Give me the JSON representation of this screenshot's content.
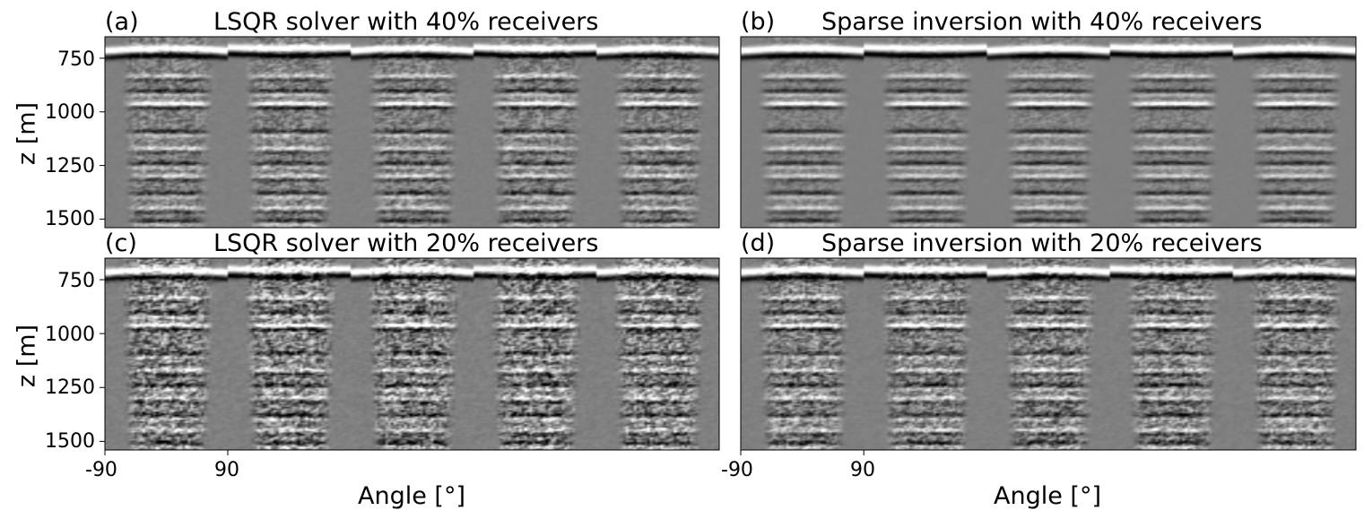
{
  "figure": {
    "background": "#ffffff",
    "colormap": "gray",
    "frame_color": "#000000"
  },
  "chart_data": [
    {
      "type": "heatmap",
      "panel_label": "(a)",
      "title": "LSQR solver with 40% receivers",
      "xlabel": "",
      "ylabel": "z [m]",
      "x_tick_labels": [],
      "y_ticks": [
        750,
        1000,
        1250,
        1500
      ],
      "ylim": [
        1540,
        650
      ],
      "gathers": 5,
      "gather_angle_range": [
        -90,
        90
      ],
      "reflector_depths": [
        700,
        745,
        830,
        900,
        960,
        1090,
        1170,
        1240,
        1300,
        1380,
        1450,
        1510
      ],
      "noise_level": 0.16
    },
    {
      "type": "heatmap",
      "panel_label": "(b)",
      "title": "Sparse inversion with 40% receivers",
      "xlabel": "",
      "ylabel": "",
      "x_tick_labels": [],
      "y_ticks": [],
      "ylim": [
        1540,
        650
      ],
      "gathers": 5,
      "gather_angle_range": [
        -90,
        90
      ],
      "reflector_depths": [
        700,
        745,
        830,
        900,
        960,
        1090,
        1170,
        1240,
        1300,
        1380,
        1450,
        1510
      ],
      "noise_level": 0.09
    },
    {
      "type": "heatmap",
      "panel_label": "(c)",
      "title": "LSQR solver with 20% receivers",
      "xlabel": "Angle [°]",
      "ylabel": "z [m]",
      "x_tick_labels": [
        "-90",
        "90"
      ],
      "y_ticks": [
        750,
        1000,
        1250,
        1500
      ],
      "ylim": [
        1540,
        650
      ],
      "gathers": 5,
      "gather_angle_range": [
        -90,
        90
      ],
      "reflector_depths": [
        700,
        745,
        830,
        900,
        960,
        1090,
        1170,
        1240,
        1300,
        1380,
        1450,
        1510
      ],
      "noise_level": 0.32
    },
    {
      "type": "heatmap",
      "panel_label": "(d)",
      "title": "Sparse inversion with 20% receivers",
      "xlabel": "Angle [°]",
      "ylabel": "",
      "x_tick_labels": [
        "-90",
        "90"
      ],
      "y_ticks": [],
      "ylim": [
        1540,
        650
      ],
      "gathers": 5,
      "gather_angle_range": [
        -90,
        90
      ],
      "reflector_depths": [
        700,
        745,
        830,
        900,
        960,
        1090,
        1170,
        1240,
        1300,
        1380,
        1450,
        1510
      ],
      "noise_level": 0.24
    }
  ]
}
